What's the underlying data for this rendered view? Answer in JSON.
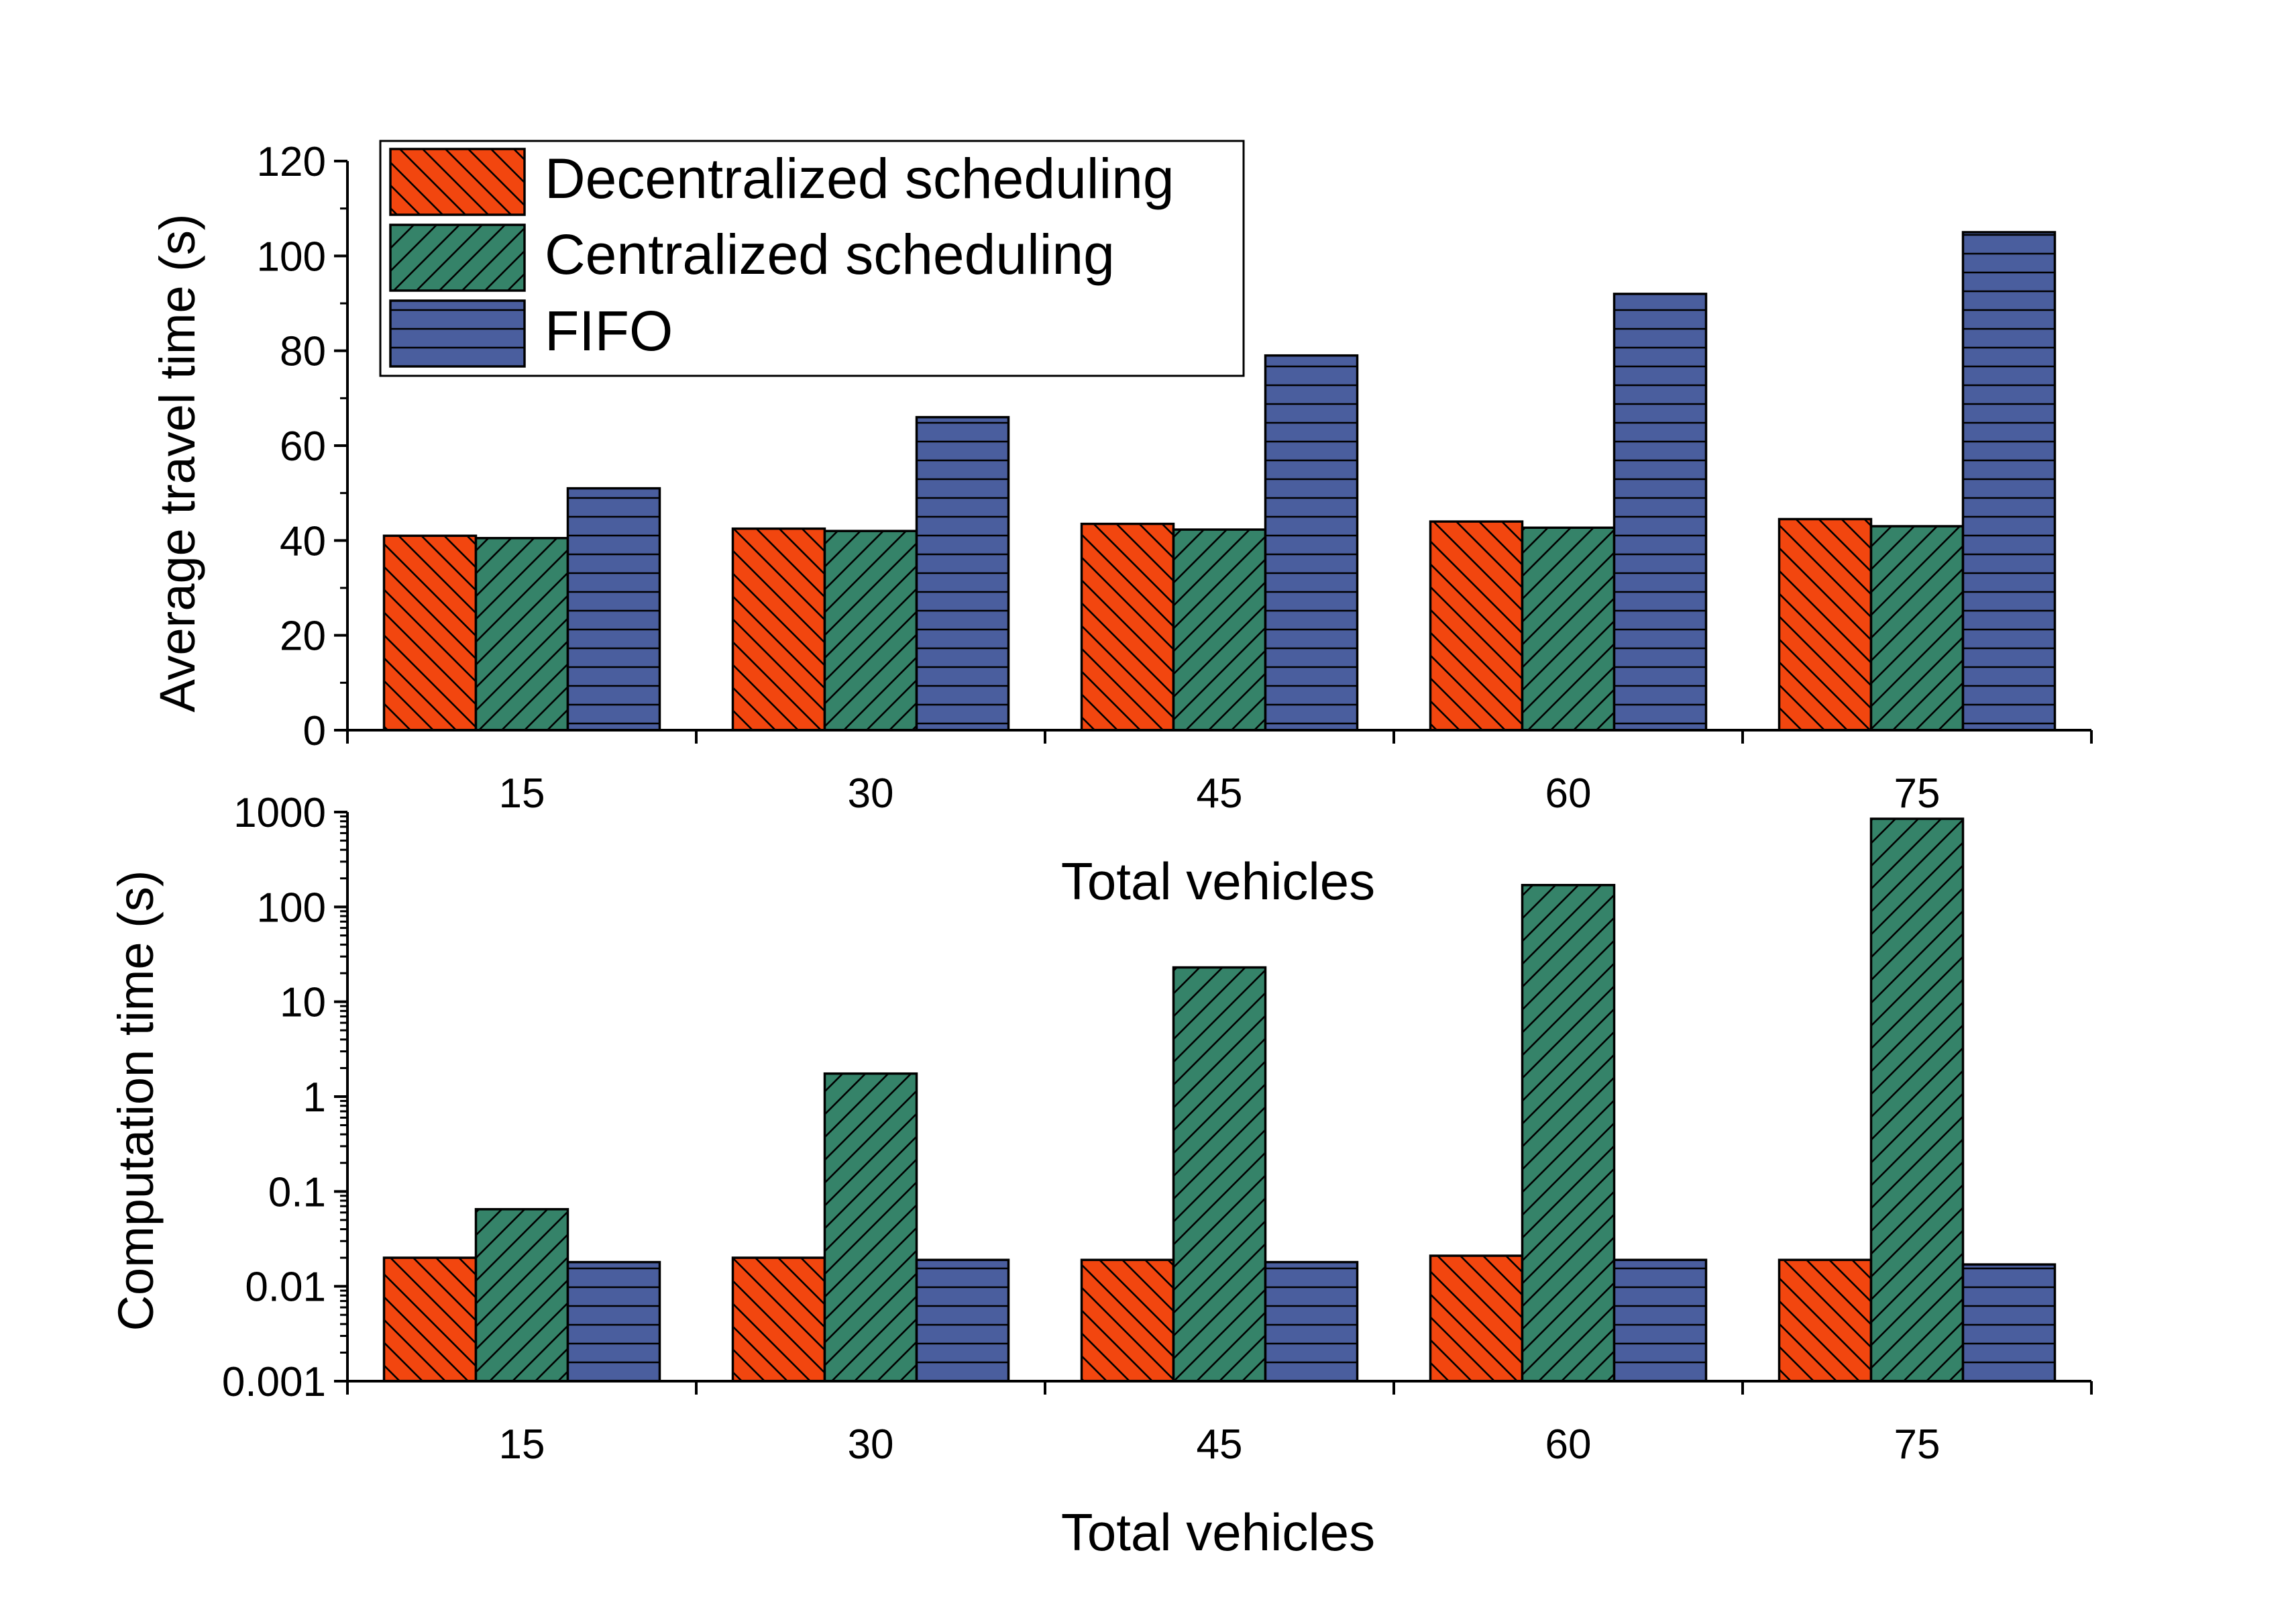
{
  "chart_data": [
    {
      "type": "bar",
      "title": "",
      "xlabel": "Total vehicles",
      "ylabel": "Average travel time (s)",
      "categories": [
        "15",
        "30",
        "45",
        "60",
        "75"
      ],
      "ylim": [
        0,
        120
      ],
      "yscale": "linear",
      "yticks": [
        "0",
        "20",
        "40",
        "60",
        "80",
        "100",
        "120"
      ],
      "legend_position": "top-left",
      "grid": false,
      "series": [
        {
          "name": "Decentralized scheduling",
          "values": [
            41,
            42.5,
            43.5,
            44,
            44.5
          ]
        },
        {
          "name": "Centralized scheduling",
          "values": [
            40.5,
            42,
            42.3,
            42.7,
            43
          ]
        },
        {
          "name": "FIFO",
          "values": [
            51,
            66,
            79,
            92,
            105
          ]
        }
      ]
    },
    {
      "type": "bar",
      "title": "",
      "xlabel": "Total vehicles",
      "ylabel": "Computation time (s)",
      "categories": [
        "15",
        "30",
        "45",
        "60",
        "75"
      ],
      "ylim": [
        0.001,
        1000
      ],
      "yscale": "log",
      "yticks": [
        "0.001",
        "0.01",
        "0.1",
        "1",
        "10",
        "100",
        "1000"
      ],
      "grid": false,
      "series": [
        {
          "name": "Decentralized scheduling",
          "values": [
            0.02,
            0.02,
            0.019,
            0.021,
            0.019
          ]
        },
        {
          "name": "Centralized scheduling",
          "values": [
            0.065,
            1.75,
            23,
            170,
            850
          ]
        },
        {
          "name": "FIFO",
          "values": [
            0.018,
            0.019,
            0.018,
            0.019,
            0.017
          ]
        }
      ]
    }
  ],
  "colors": {
    "Decentralized scheduling": "#f2460f",
    "Centralized scheduling": "#358369",
    "FIFO": "#4a5e9e",
    "outline": "#000000"
  },
  "patterns": {
    "Decentralized scheduling": "backslash-hatch",
    "Centralized scheduling": "slash-hatch",
    "FIFO": "horizontal-lines"
  }
}
